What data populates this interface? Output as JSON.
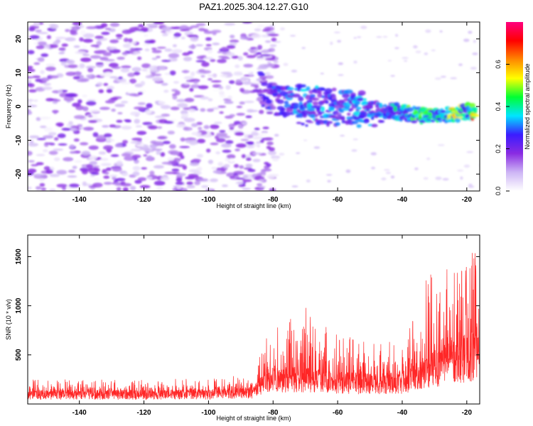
{
  "chart_data": [
    {
      "type": "heatmap",
      "title": "PAZ1.2025.304.12.27.G10",
      "xlabel": "Height of straight line (km)",
      "ylabel": "Frequency (Hz)",
      "xlim": [
        -156,
        -16
      ],
      "ylim": [
        -25,
        25
      ],
      "xticks": [
        -140,
        -120,
        -100,
        -80,
        -60,
        -40,
        -20
      ],
      "yticks": [
        20,
        10,
        0,
        -10,
        -20
      ],
      "colorbar": {
        "label": "Normalized spectral amplitude",
        "range": [
          0,
          0.8
        ],
        "ticks": [
          0.0,
          0.2,
          0.4,
          0.6
        ],
        "colormap": [
          "#ffffff",
          "#cdb5f5",
          "#8a2be2",
          "#3b1cff",
          "#00e5ff",
          "#00ff33",
          "#ffff00",
          "#ff8800",
          "#ff0000",
          "#ff007f"
        ]
      },
      "features": [
        {
          "name": "background noise",
          "x_range": [
            -156,
            -85
          ],
          "y_range": [
            -25,
            25
          ],
          "amplitude": [
            0.0,
            0.2
          ]
        },
        {
          "name": "signal trace",
          "points": [
            {
              "x": -84,
              "y": 5.5,
              "amp": 0.25
            },
            {
              "x": -80,
              "y": 2.0,
              "amp": 0.3
            },
            {
              "x": -75,
              "y": 1.5,
              "amp": 0.33
            },
            {
              "x": -70,
              "y": 1.8,
              "amp": 0.35
            },
            {
              "x": -65,
              "y": 1.0,
              "amp": 0.35
            },
            {
              "x": -60,
              "y": 0.5,
              "amp": 0.32
            },
            {
              "x": -55,
              "y": 0.0,
              "amp": 0.35
            },
            {
              "x": -50,
              "y": -0.8,
              "amp": 0.35
            },
            {
              "x": -45,
              "y": -1.0,
              "amp": 0.35
            },
            {
              "x": -40,
              "y": -1.8,
              "amp": 0.45
            },
            {
              "x": -35,
              "y": -2.5,
              "amp": 0.5
            },
            {
              "x": -30,
              "y": -2.5,
              "amp": 0.45
            },
            {
              "x": -25,
              "y": -2.2,
              "amp": 0.6
            },
            {
              "x": -20,
              "y": -1.5,
              "amp": 0.5
            },
            {
              "x": -17,
              "y": -1.5,
              "amp": 0.8
            }
          ]
        }
      ]
    },
    {
      "type": "line",
      "xlabel": "Height of straight line (km)",
      "ylabel": "SNR (10 * v/v)",
      "xlim": [
        -156,
        -16
      ],
      "ylim": [
        0,
        1720
      ],
      "xticks": [
        -140,
        -120,
        -100,
        -80,
        -60,
        -40,
        -20
      ],
      "yticks": [
        500,
        1000,
        1500
      ],
      "color": "#ff0000",
      "series": [
        {
          "name": "SNR",
          "envelope": [
            {
              "x": -156,
              "baseline": 110,
              "peak": 250
            },
            {
              "x": -140,
              "baseline": 110,
              "peak": 250
            },
            {
              "x": -120,
              "baseline": 110,
              "peak": 250
            },
            {
              "x": -100,
              "baseline": 115,
              "peak": 260
            },
            {
              "x": -86,
              "baseline": 140,
              "peak": 320
            },
            {
              "x": -82,
              "baseline": 280,
              "peak": 700
            },
            {
              "x": -72,
              "baseline": 300,
              "peak": 1070
            },
            {
              "x": -60,
              "baseline": 260,
              "peak": 700
            },
            {
              "x": -50,
              "baseline": 240,
              "peak": 670
            },
            {
              "x": -40,
              "baseline": 260,
              "peak": 650
            },
            {
              "x": -32,
              "baseline": 400,
              "peak": 1350
            },
            {
              "x": -25,
              "baseline": 500,
              "peak": 1400
            },
            {
              "x": -20,
              "baseline": 550,
              "peak": 1450
            },
            {
              "x": -17,
              "baseline": 600,
              "peak": 1700
            }
          ]
        }
      ]
    }
  ]
}
